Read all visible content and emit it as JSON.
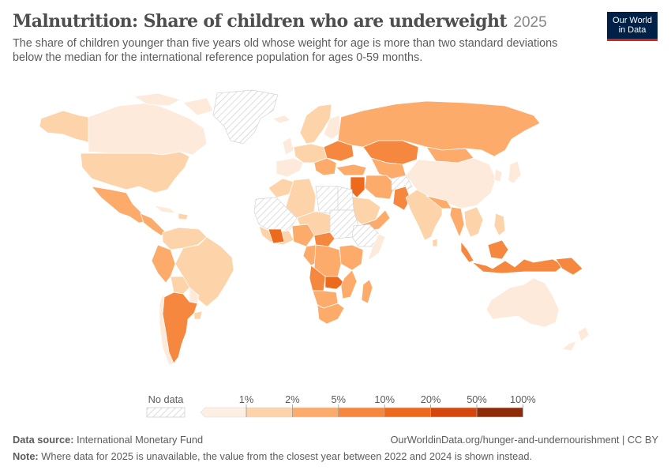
{
  "header": {
    "title": "Malnutrition: Share of children who are underweight",
    "year": "2025",
    "subtitle": "The share of children younger than five years old whose weight for age is more than two standard deviations below the median for the international reference population for ages 0-59 months."
  },
  "logo": {
    "line1": "Our World",
    "line2": "in Data"
  },
  "legend": {
    "no_data_label": "No data",
    "ticks": [
      "1%",
      "2%",
      "5%",
      "10%",
      "20%",
      "50%",
      "100%"
    ],
    "colors": [
      "#fdf0e3",
      "#fdd3a9",
      "#fcab6b",
      "#f5883e",
      "#ed6a1c",
      "#d4460c",
      "#8e2c08"
    ]
  },
  "map_colors": {
    "lightest": "#fdeadb",
    "light": "#fdd3a9",
    "mid": "#fcab6b",
    "dark": "#f5883e",
    "darker": "#ed6a1c",
    "no_data_stroke": "#cfcfcf",
    "border": "#ffffff"
  },
  "footer": {
    "source_label": "Data source:",
    "source_value": "International Monetary Fund",
    "url": "OurWorldinData.org/hunger-and-undernourishment | CC BY",
    "note_label": "Note:",
    "note_value": "Where data for 2025 is unavailable, the value from the closest year between 2022 and 2024 is shown instead."
  }
}
